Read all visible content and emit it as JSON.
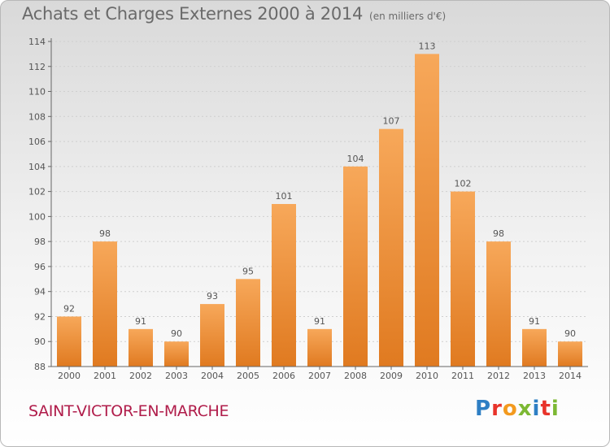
{
  "title": "Achats et Charges Externes 2000 à 2014",
  "subtitle": "(en milliers d'€)",
  "commune": "SAINT-VICTOR-EN-MARCHE",
  "logo": {
    "text": "Proxiti",
    "letter_colors": [
      "#2e7fc4",
      "#e8332a",
      "#f39a1e",
      "#7cb833",
      "#2e7fc4",
      "#e8332a",
      "#7cb833"
    ]
  },
  "colors": {
    "bar_light": "#f7a85a",
    "bar_dark": "#e07a20",
    "axis": "#666666",
    "grid": "#cfcfcf",
    "text": "#555555"
  },
  "chart_data": {
    "type": "bar",
    "categories": [
      "2000",
      "2001",
      "2002",
      "2003",
      "2004",
      "2005",
      "2006",
      "2007",
      "2008",
      "2009",
      "2010",
      "2011",
      "2012",
      "2013",
      "2014"
    ],
    "values": [
      92,
      98,
      91,
      90,
      93,
      95,
      101,
      91,
      104,
      107,
      113,
      102,
      98,
      91,
      90
    ],
    "ylim": [
      88,
      114
    ],
    "yticks": [
      88,
      90,
      92,
      94,
      96,
      98,
      100,
      102,
      104,
      106,
      108,
      110,
      112,
      114
    ],
    "grid": true,
    "xlabel": "",
    "ylabel": ""
  }
}
